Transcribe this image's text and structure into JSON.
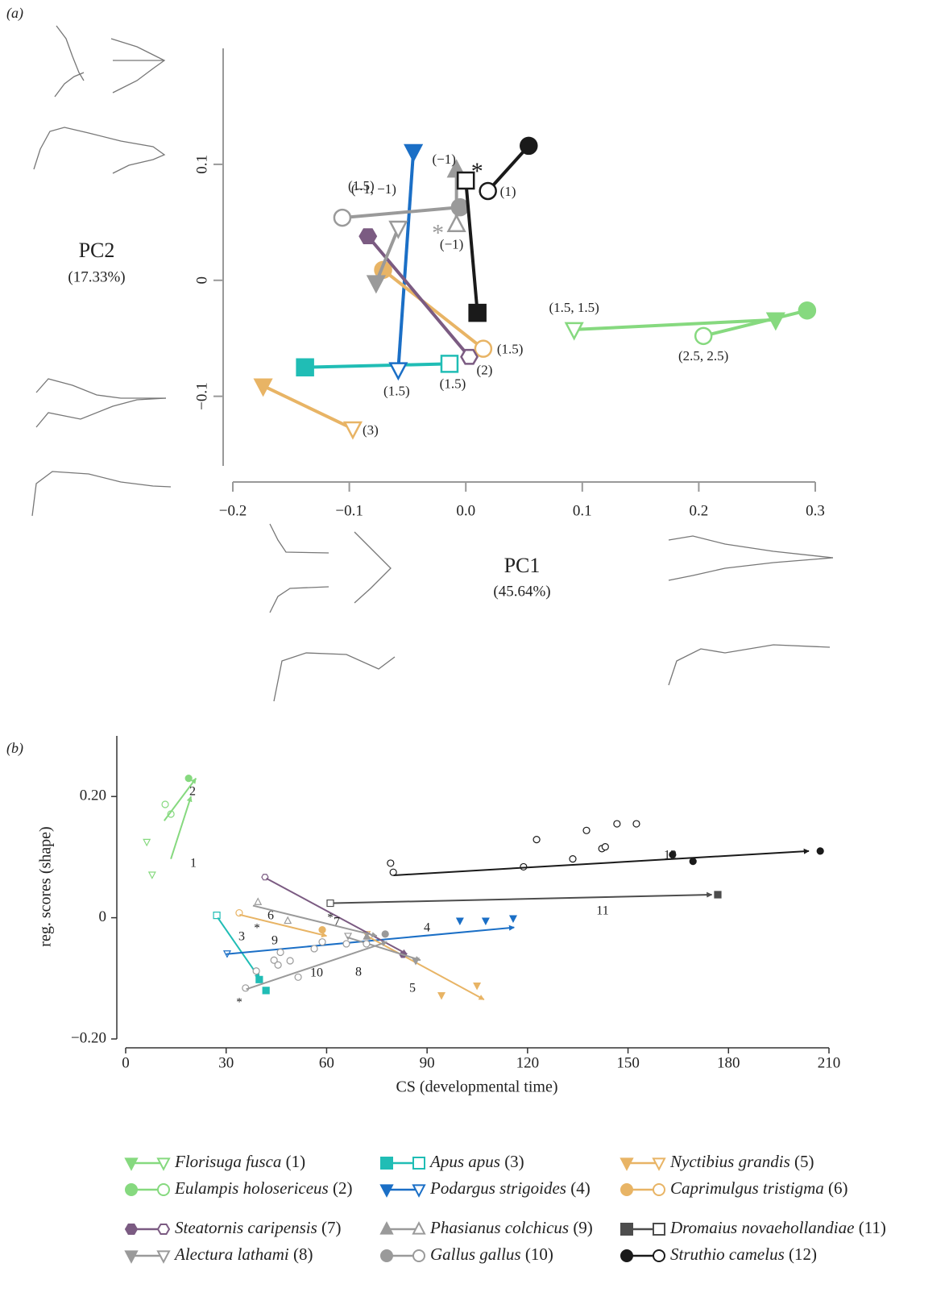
{
  "chart_data": [
    {
      "type": "trajectory",
      "panel_label": "(a)",
      "x_label": "PC1",
      "x_label_note": "(45.64%)",
      "y_label": "PC2",
      "y_label_note": "(17.33%)",
      "xlim": [
        -0.2,
        0.3
      ],
      "ylim": [
        -0.16,
        0.2
      ],
      "xticks": [
        {
          "value": -0.2,
          "label": "−0.2"
        },
        {
          "value": -0.1,
          "label": "−0.1"
        },
        {
          "value": 0,
          "label": "0.0"
        },
        0.1,
        0.2,
        0.3
      ],
      "yticks": [
        {
          "value": -0.1,
          "label": "−0.1"
        },
        0,
        0.1
      ],
      "series": [
        {
          "color": "#86d97f",
          "marker": "tri-down",
          "x_open": 0.093,
          "y_open": -0.0425,
          "x_filled": 0.266,
          "y_filled": -0.034,
          "label": "(1.5, 1.5)"
        },
        {
          "color": "#86d97f",
          "marker": "circle",
          "x_open": 0.204,
          "y_open": -0.048,
          "x_filled": 0.293,
          "y_filled": -0.026,
          "label": "(2.5, 2.5)"
        },
        {
          "color": "#20bdb5",
          "marker": "square",
          "x_open": -0.014,
          "y_open": -0.072,
          "x_filled": -0.138,
          "y_filled": -0.075,
          "label": "(1.5)"
        },
        {
          "color": "#1b6fc6",
          "marker": "tri-down",
          "x_open": -0.058,
          "y_open": -0.077,
          "x_filled": -0.045,
          "y_filled": 0.111,
          "label": "(1.5)"
        },
        {
          "color": "#e8b465",
          "marker": "tri-down",
          "x_open": -0.097,
          "y_open": -0.128,
          "x_filled": -0.174,
          "y_filled": -0.091,
          "label": "(3)"
        },
        {
          "color": "#e8b465",
          "marker": "circle",
          "x_open": 0.015,
          "y_open": -0.059,
          "x_filled": -0.071,
          "y_filled": 0.009,
          "label": "(1.5)"
        },
        {
          "color": "#7b5b82",
          "marker": "hexagon",
          "x_open": 0.003,
          "y_open": -0.066,
          "x_filled": -0.084,
          "y_filled": 0.038,
          "label": "(2)"
        },
        {
          "color": "#9a9a9a",
          "marker": "tri-down",
          "x_open": -0.058,
          "y_open": 0.045,
          "x_filled": -0.077,
          "y_filled": -0.002,
          "label": "(1.5)"
        },
        {
          "color": "#9a9a9a",
          "marker": "tri-up",
          "x_open": -0.008,
          "y_open": 0.048,
          "x_filled": -0.008,
          "y_filled": 0.095,
          "label": "(−1)",
          "note": "*"
        },
        {
          "color": "#9a9a9a",
          "marker": "circle",
          "x_open": -0.106,
          "y_open": 0.054,
          "x_filled": -0.005,
          "y_filled": 0.063,
          "label": "(−1, −1)"
        },
        {
          "color": "#1a1a1a",
          "marker": "square",
          "x_open": 0.0,
          "y_open": 0.086,
          "x_filled": 0.01,
          "y_filled": -0.028,
          "label": "(−1)",
          "note": "*"
        },
        {
          "color": "#1a1a1a",
          "marker": "circle",
          "x_open": 0.019,
          "y_open": 0.077,
          "x_filled": 0.054,
          "y_filled": 0.116,
          "label": "(1)"
        }
      ]
    },
    {
      "type": "trajectory-scatter",
      "panel_label": "(b)",
      "x_label": "CS (developmental time)",
      "y_label": "reg. scores (shape)",
      "xlim": [
        0,
        210
      ],
      "ylim": [
        -0.2,
        0.3
      ],
      "xticks": [
        0,
        30,
        60,
        90,
        120,
        150,
        180,
        210
      ],
      "yticks": [
        {
          "value": -0.2,
          "label": "−0.20"
        },
        0,
        {
          "value": 0.2,
          "label": "0.20"
        }
      ],
      "series": [
        {
          "name": "Florisuga fusca",
          "number_label": "(1)",
          "color": "#86d97f",
          "marker": "tri-down",
          "open": {
            "x": [
              6.3,
              7.9
            ],
            "y": [
              0.125,
              0.071
            ]
          },
          "filled": {
            "x": [],
            "y": []
          },
          "arrow": {
            "x": [
              13.5,
              19.5
            ],
            "y": [
              0.097,
              0.2
            ]
          },
          "label": "1"
        },
        {
          "name": "Eulampis holosericeus",
          "number_label": "(2)",
          "color": "#86d97f",
          "marker": "circle",
          "open": {
            "x": [
              11.8,
              13.5
            ],
            "y": [
              0.187,
              0.171
            ]
          },
          "filled": {
            "x": [
              18.8
            ],
            "y": [
              0.23
            ]
          },
          "arrow": {
            "x": [
              11.5,
              21
            ],
            "y": [
              0.16,
              0.23
            ]
          },
          "label": "2"
        },
        {
          "name": "Apus apus",
          "number_label": "(3)",
          "color": "#20bdb5",
          "marker": "square",
          "open": {
            "x": [
              27.2
            ],
            "y": [
              0.004
            ]
          },
          "filled": {
            "x": [
              39.9,
              41.9
            ],
            "y": [
              -0.102,
              -0.12
            ]
          },
          "arrow": {
            "x": [
              27.5,
              40
            ],
            "y": [
              0.0,
              -0.1
            ]
          },
          "label": "3"
        },
        {
          "name": "Podargus strigoides",
          "number_label": "(4)",
          "color": "#1b6fc6",
          "marker": "tri-down",
          "open": {
            "x": [
              30.3
            ],
            "y": [
              -0.059
            ]
          },
          "filled": {
            "x": [
              99.8,
              107.5,
              115.7
            ],
            "y": [
              -0.005,
              -0.005,
              -0.001
            ]
          },
          "arrow": {
            "x": [
              30,
              116
            ],
            "y": [
              -0.06,
              -0.016
            ]
          },
          "label": "4"
        },
        {
          "name": "Nyctibius grandis",
          "number_label": "(5)",
          "color": "#e8b465",
          "marker": "tri-down",
          "open": {
            "x": [
              72
            ],
            "y": [
              -0.027
            ]
          },
          "filled": {
            "x": [
              94.3,
              104.9
            ],
            "y": [
              -0.128,
              -0.112
            ]
          },
          "arrow": {
            "x": [
              72,
              107
            ],
            "y": [
              -0.03,
              -0.135
            ]
          },
          "label": "5"
        },
        {
          "name": "Caprimulgus tristigma",
          "number_label": "(6)",
          "color": "#e8b465",
          "marker": "circle",
          "open": {
            "x": [
              33.9
            ],
            "y": [
              0.008
            ]
          },
          "filled": {
            "x": [
              58.7
            ],
            "y": [
              -0.02
            ]
          },
          "arrow": {
            "x": [
              34,
              60
            ],
            "y": [
              0.005,
              -0.03
            ]
          },
          "label": "6"
        },
        {
          "name": "Steatornis caripensis",
          "number_label": "(7)",
          "color": "#7b5b82",
          "marker": "hexagon",
          "open": {
            "x": [
              41.6
            ],
            "y": [
              0.067
            ]
          },
          "filled": {
            "x": [
              82.8
            ],
            "y": [
              -0.061
            ]
          },
          "arrow": {
            "x": [
              42,
              84
            ],
            "y": [
              0.065,
              -0.06
            ]
          },
          "label": "7"
        },
        {
          "name": "Alectura lathami",
          "number_label": "(8)",
          "color": "#9a9a9a",
          "marker": "tri-down",
          "open": {
            "x": [
              66.4
            ],
            "y": [
              -0.03
            ]
          },
          "filled": {
            "x": [
              86.6
            ],
            "y": [
              -0.071
            ]
          },
          "arrow": {
            "x": [
              66,
              88
            ],
            "y": [
              -0.032,
              -0.07
            ]
          },
          "label": "8"
        },
        {
          "name": "Phasianus colchicus",
          "number_label": "(9)",
          "color": "#9a9a9a",
          "marker": "tri-up",
          "open": {
            "x": [
              39.5,
              48.4
            ],
            "y": [
              0.026,
              -0.005
            ]
          },
          "filled": {
            "x": [
              72
            ],
            "y": [
              -0.031
            ]
          },
          "arrow": {
            "x": [
              38,
              75
            ],
            "y": [
              0.02,
              -0.03
            ]
          },
          "label": "9",
          "note": "*"
        },
        {
          "name": "Gallus gallus",
          "number_label": "(10)",
          "color": "#9a9a9a",
          "marker": "circle",
          "open": {
            "x": [
              35.8,
              39.0,
              44.3,
              46.2,
              45.5,
              49.1,
              51.5,
              56.3,
              58.7,
              65.9,
              71.9
            ],
            "y": [
              -0.116,
              -0.088,
              -0.07,
              -0.057,
              -0.078,
              -0.071,
              -0.098,
              -0.051,
              -0.04,
              -0.043,
              -0.043
            ]
          },
          "filled": {
            "x": [
              77.5
            ],
            "y": [
              -0.027
            ]
          },
          "arrow": {
            "x": [
              36,
              78
            ],
            "y": [
              -0.118,
              -0.04
            ]
          },
          "label": "10",
          "note": "*"
        },
        {
          "name": "Dromaius novaehollandiae",
          "number_label": "(11)",
          "color": "#4d4d4d",
          "marker": "square",
          "open": {
            "x": [
              61.1
            ],
            "y": [
              0.024
            ]
          },
          "filled": {
            "x": [
              176.8
            ],
            "y": [
              0.038
            ]
          },
          "arrow": {
            "x": [
              62,
              175
            ],
            "y": [
              0.024,
              0.038
            ]
          },
          "label": "11",
          "note": "*"
        },
        {
          "name": "Struthio camelus",
          "number_label": "(12)",
          "color": "#1a1a1a",
          "marker": "circle",
          "open": {
            "x": [
              79.1,
              79.9,
              118.8,
              122.7,
              133.5,
              137.6,
              142.2,
              143.2,
              146.7,
              152.5
            ],
            "y": [
              0.09,
              0.075,
              0.084,
              0.129,
              0.097,
              0.144,
              0.114,
              0.117,
              0.155,
              0.155
            ]
          },
          "filled": {
            "x": [
              163.3,
              169.4,
              207.4
            ],
            "y": [
              0.104,
              0.093,
              0.11
            ]
          },
          "arrow": {
            "x": [
              80,
              204
            ],
            "y": [
              0.07,
              0.11
            ]
          },
          "label": "12"
        }
      ]
    }
  ]
}
